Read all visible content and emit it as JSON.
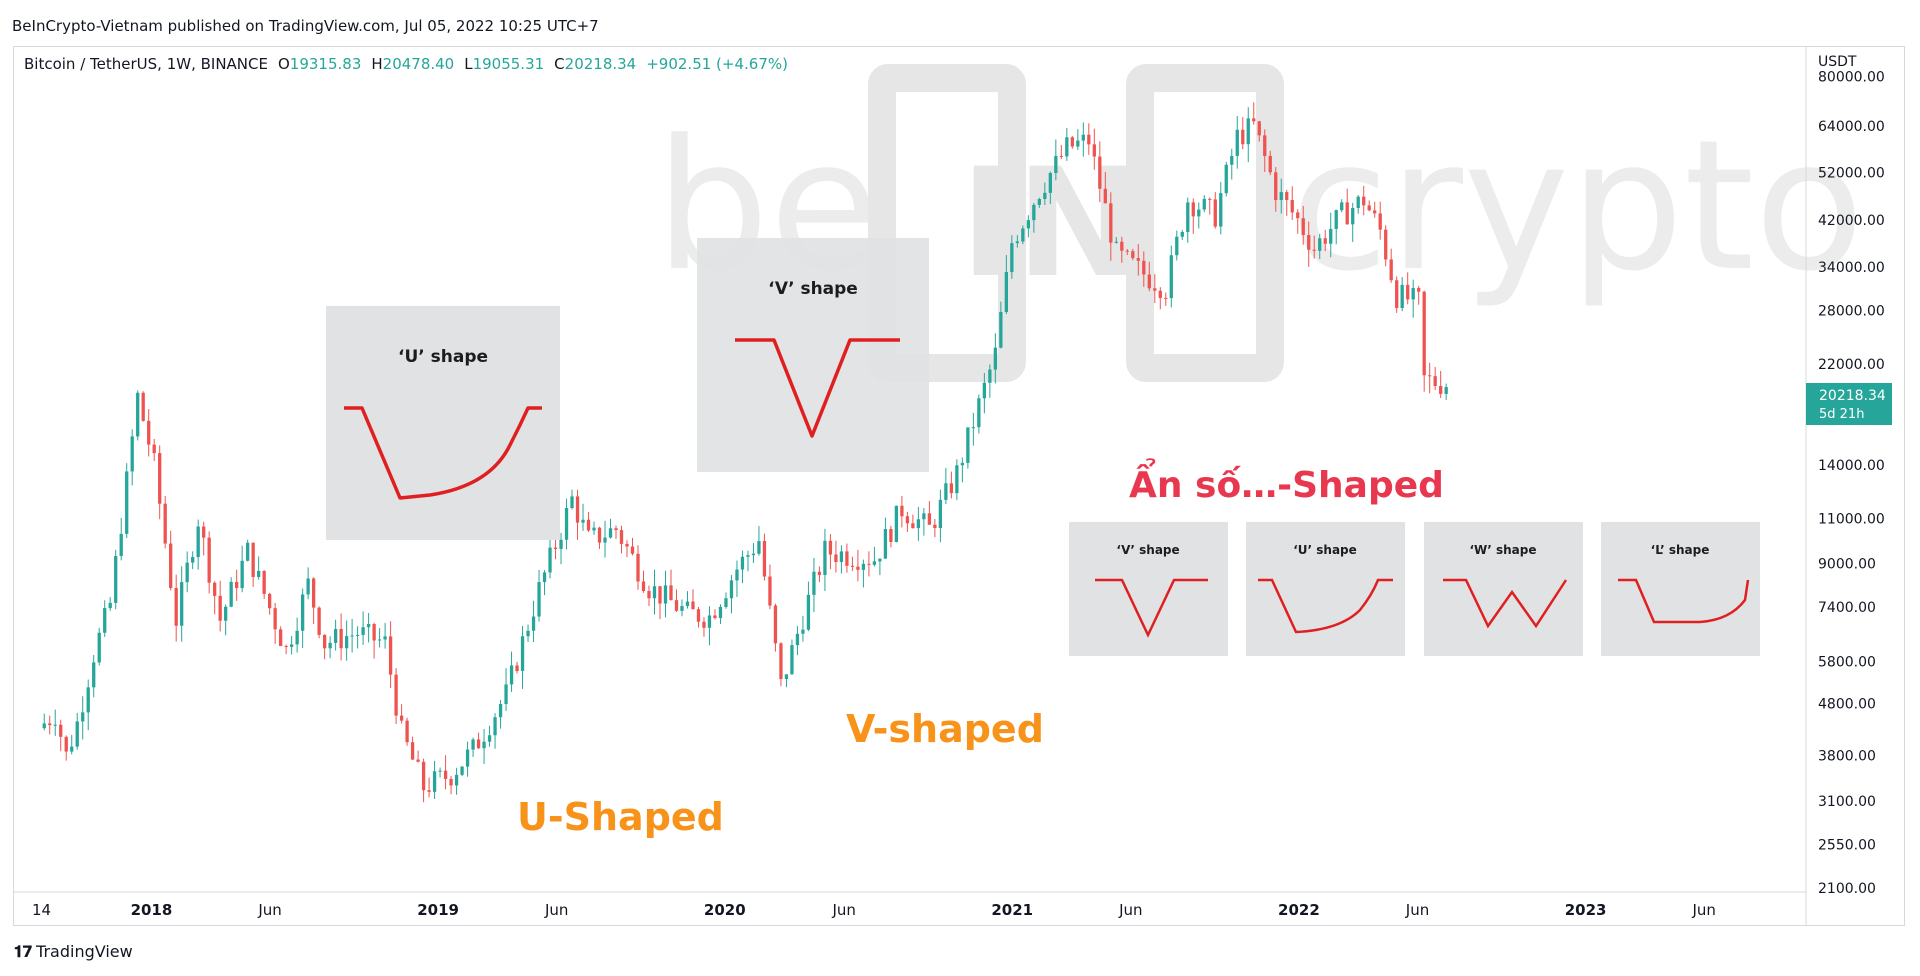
{
  "publisher_line": "BeInCrypto-Vietnam published on TradingView.com, Jul 05, 2022 10:25 UTC+7",
  "legend": {
    "symbol": "Bitcoin / TetherUS, 1W, BINANCE",
    "open_label": "O",
    "open": "19315.83",
    "high_label": "H",
    "high": "20478.40",
    "low_label": "L",
    "low": "19055.31",
    "close_label": "C",
    "close": "20218.34",
    "change": "+902.51 (+4.67%)"
  },
  "price_badge": {
    "price": "20218.34",
    "countdown": "5d 21h"
  },
  "footer": {
    "brand": "TradingView"
  },
  "watermark": {
    "left": "be",
    "middle": "IN",
    "right": "crypto"
  },
  "annotations": {
    "u_shaped": "U-Shaped",
    "v_shaped": "V-shaped",
    "unknown_shaped": "Ẩn số…-Shaped"
  },
  "insets": {
    "u_large": "‘U’ shape",
    "v_large": "‘V’ shape",
    "small": [
      "‘V’ shape",
      "‘U’ shape",
      "‘W’ shape",
      "‘L’ shape"
    ]
  },
  "colors": {
    "up": "#26a69a",
    "down": "#ef5350",
    "annotation_orange": "#f7931a",
    "annotation_red": "#e8384f",
    "badge": "#26a69a",
    "inset_bg": "#e1e2e4",
    "inset_line": "#e02020"
  },
  "chart_data": {
    "type": "candlestick",
    "title": "Bitcoin / TetherUS, 1W, BINANCE",
    "currency": "USDT",
    "y_scale": "log",
    "ylim": [
      2100,
      90000
    ],
    "y_ticks": [
      "80000.00",
      "64000.00",
      "52000.00",
      "42000.00",
      "34000.00",
      "28000.00",
      "22000.00",
      "14000.00",
      "11000.00",
      "9000.00",
      "7400.00",
      "5800.00",
      "4800.00",
      "3800.00",
      "3100.00",
      "2550.00",
      "2100.00"
    ],
    "x_ticks": [
      {
        "label": "14",
        "date": "2017-08-14",
        "bold": false
      },
      {
        "label": "2018",
        "date": "2018-01-01",
        "bold": true
      },
      {
        "label": "Jun",
        "date": "2018-06-01",
        "bold": false
      },
      {
        "label": "2019",
        "date": "2019-01-01",
        "bold": true
      },
      {
        "label": "Jun",
        "date": "2019-06-01",
        "bold": false
      },
      {
        "label": "2020",
        "date": "2020-01-01",
        "bold": true
      },
      {
        "label": "Jun",
        "date": "2020-06-01",
        "bold": false
      },
      {
        "label": "2021",
        "date": "2021-01-01",
        "bold": true
      },
      {
        "label": "Jun",
        "date": "2021-06-01",
        "bold": false
      },
      {
        "label": "2022",
        "date": "2022-01-01",
        "bold": true
      },
      {
        "label": "Jun",
        "date": "2022-06-01",
        "bold": false
      },
      {
        "label": "2023",
        "date": "2023-01-01",
        "bold": true
      },
      {
        "label": "Jun",
        "date": "2023-06-01",
        "bold": false
      }
    ],
    "x_range": [
      "2017-07-10",
      "2023-10-01"
    ],
    "price_path": [
      [
        "2017-08-14",
        4300
      ],
      [
        "2017-09-04",
        4600
      ],
      [
        "2017-09-18",
        3800
      ],
      [
        "2017-10-02",
        4400
      ],
      [
        "2017-10-23",
        6000
      ],
      [
        "2017-11-13",
        7500
      ],
      [
        "2017-12-04",
        13000
      ],
      [
        "2017-12-18",
        19000
      ],
      [
        "2018-01-08",
        14000
      ],
      [
        "2018-02-05",
        7000
      ],
      [
        "2018-03-05",
        11000
      ],
      [
        "2018-04-02",
        7000
      ],
      [
        "2018-05-07",
        9500
      ],
      [
        "2018-06-25",
        6100
      ],
      [
        "2018-07-23",
        8200
      ],
      [
        "2018-08-13",
        6300
      ],
      [
        "2018-09-24",
        6600
      ],
      [
        "2018-10-29",
        6300
      ],
      [
        "2018-11-19",
        4200
      ],
      [
        "2018-12-17",
        3300
      ],
      [
        "2019-01-21",
        3500
      ],
      [
        "2019-02-18",
        3900
      ],
      [
        "2019-04-01",
        5000
      ],
      [
        "2019-05-13",
        8000
      ],
      [
        "2019-06-24",
        12000
      ],
      [
        "2019-07-15",
        10000
      ],
      [
        "2019-08-19",
        10500
      ],
      [
        "2019-09-30",
        8100
      ],
      [
        "2019-11-18",
        7200
      ],
      [
        "2019-12-16",
        7100
      ],
      [
        "2020-01-20",
        8800
      ],
      [
        "2020-02-17",
        10000
      ],
      [
        "2020-03-16",
        5200
      ],
      [
        "2020-04-13",
        7100
      ],
      [
        "2020-05-11",
        9500
      ],
      [
        "2020-07-13",
        9200
      ],
      [
        "2020-08-17",
        11500
      ],
      [
        "2020-09-21",
        10500
      ],
      [
        "2020-10-26",
        13500
      ],
      [
        "2020-12-14",
        23000
      ],
      [
        "2021-01-04",
        38000
      ],
      [
        "2021-02-08",
        48000
      ],
      [
        "2021-03-15",
        58000
      ],
      [
        "2021-04-12",
        60000
      ],
      [
        "2021-05-17",
        36000
      ],
      [
        "2021-06-21",
        33000
      ],
      [
        "2021-07-19",
        31000
      ],
      [
        "2021-08-16",
        46000
      ],
      [
        "2021-09-20",
        43000
      ],
      [
        "2021-10-18",
        61000
      ],
      [
        "2021-11-08",
        64000
      ],
      [
        "2021-12-06",
        48000
      ],
      [
        "2022-01-03",
        42000
      ],
      [
        "2022-01-24",
        37000
      ],
      [
        "2022-02-28",
        43000
      ],
      [
        "2022-03-28",
        46000
      ],
      [
        "2022-04-18",
        40000
      ],
      [
        "2022-05-09",
        30000
      ],
      [
        "2022-06-06",
        29000
      ],
      [
        "2022-06-13",
        20500
      ],
      [
        "2022-07-04",
        20218
      ]
    ]
  }
}
